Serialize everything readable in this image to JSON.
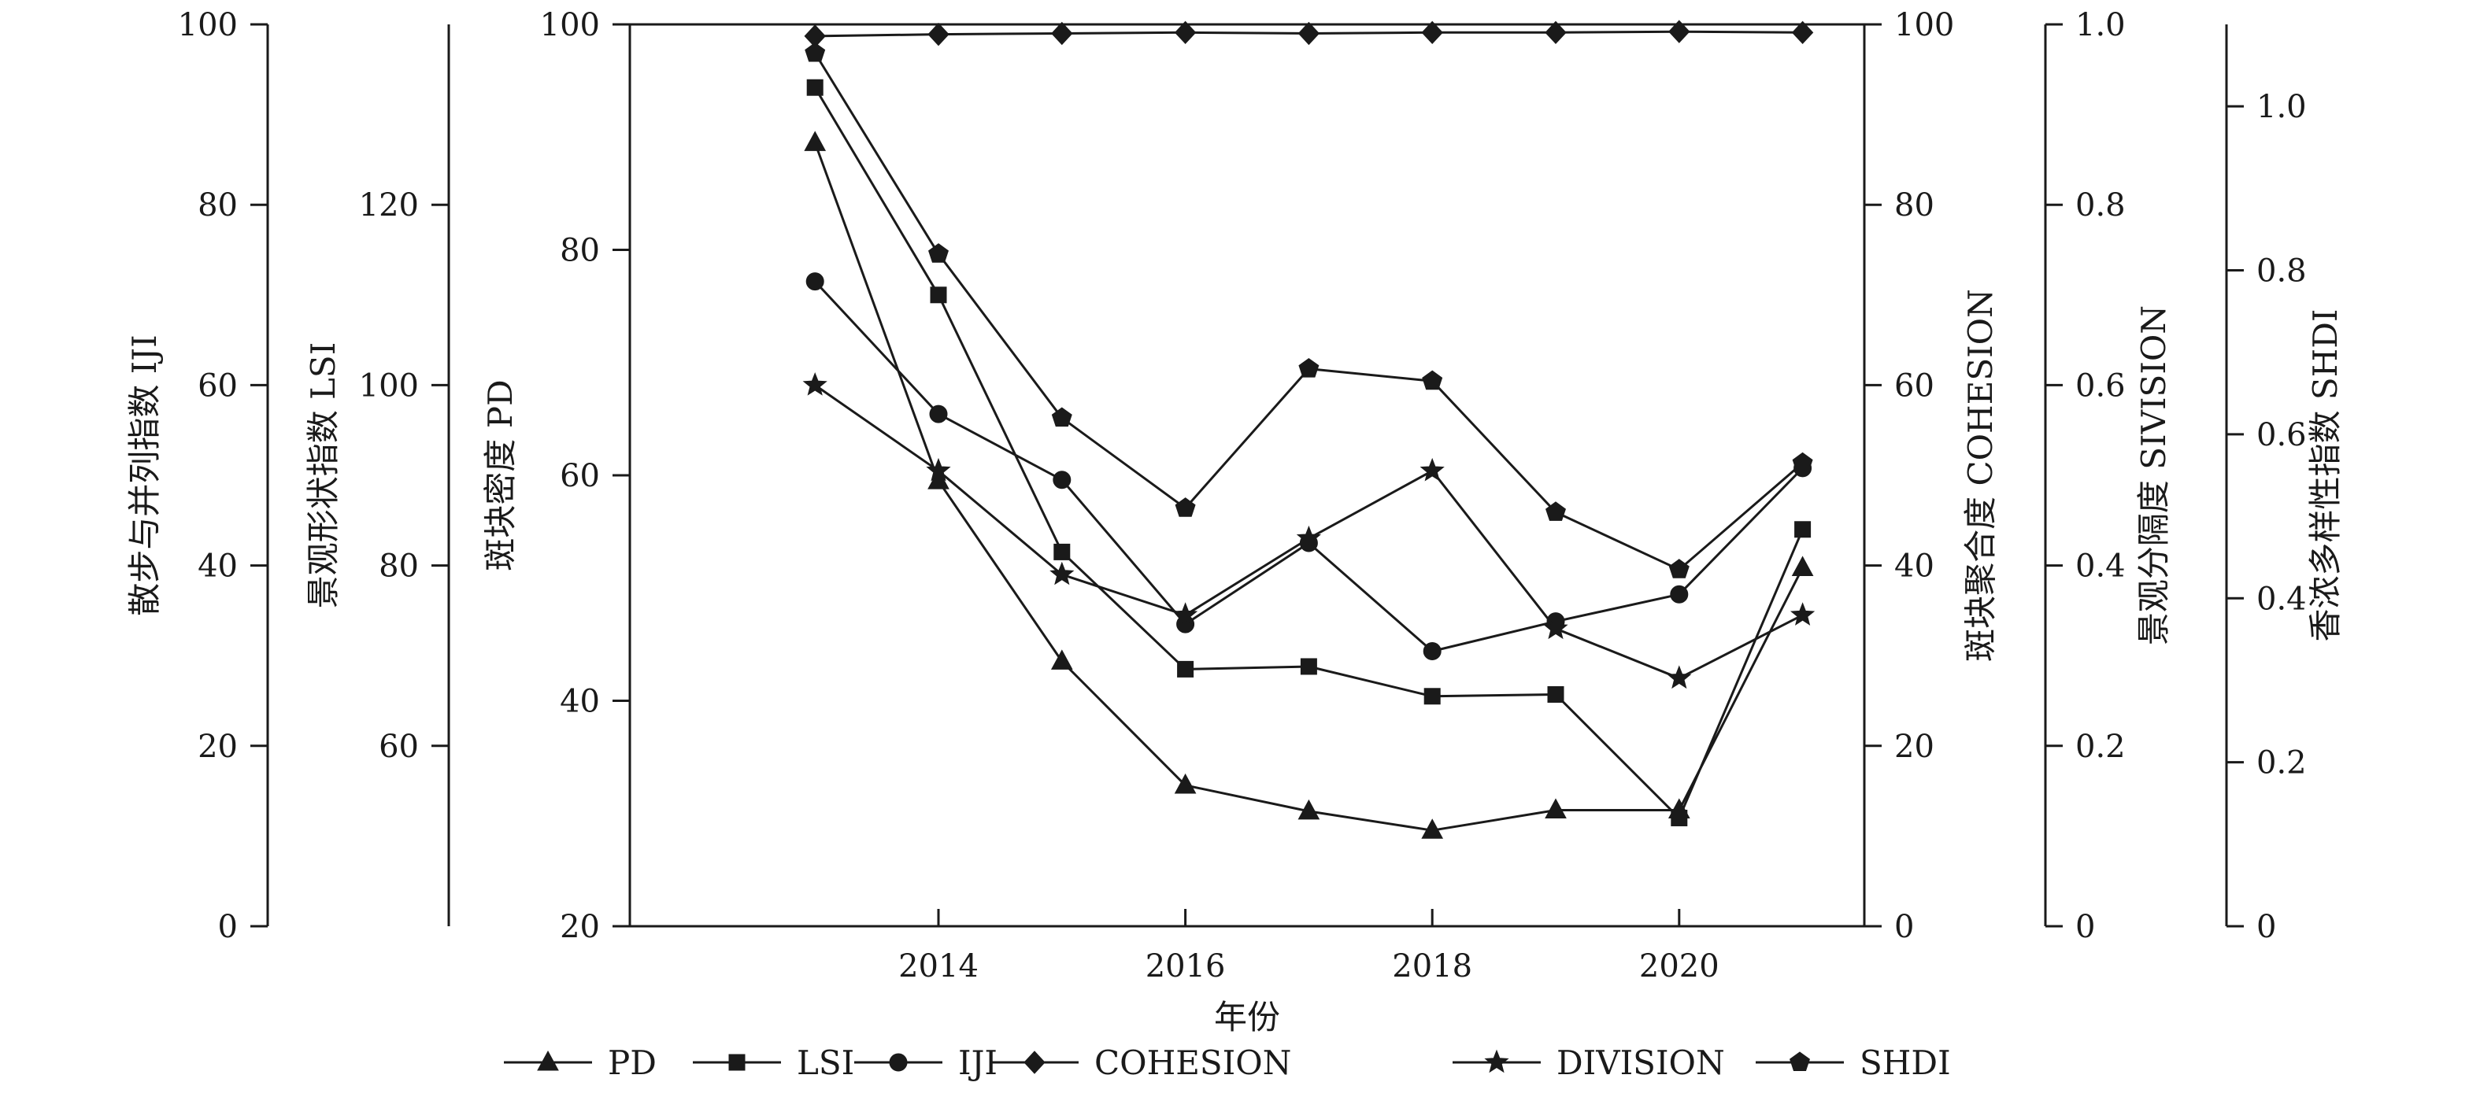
{
  "chart_data": {
    "type": "line",
    "xlabel": "年份",
    "x": [
      2013,
      2014,
      2015,
      2016,
      2017,
      2018,
      2019,
      2020,
      2021
    ],
    "xticks": [
      2014,
      2016,
      2018,
      2020
    ],
    "xlim": [
      2011.5,
      2021.5
    ],
    "axes": {
      "pd": {
        "label": "斑块密度 PD",
        "range": [
          20,
          100
        ],
        "ticks": [
          20,
          40,
          60,
          80,
          100
        ],
        "tick_labels": [
          "20",
          "40",
          "60",
          "80",
          "100"
        ]
      },
      "lsi": {
        "label": "景观形状指数 LSI",
        "range": [
          40,
          140
        ],
        "ticks": [
          60,
          80,
          100,
          120
        ],
        "tick_labels": [
          "60",
          "80",
          "100",
          "120"
        ]
      },
      "iji": {
        "label": "散步与并列指数 IJI",
        "range": [
          0,
          100
        ],
        "ticks": [
          0,
          20,
          40,
          60,
          80,
          100
        ],
        "tick_labels": [
          "0",
          "20",
          "40",
          "60",
          "80",
          "100"
        ]
      },
      "cohesion": {
        "label": "斑块聚合度 COHESION",
        "range": [
          0,
          100
        ],
        "ticks": [
          0,
          20,
          40,
          60,
          80,
          100
        ],
        "tick_labels": [
          "0",
          "20",
          "40",
          "60",
          "80",
          "100"
        ]
      },
      "division": {
        "label": "景观分隔度 SIVISION",
        "range": [
          0,
          1.0
        ],
        "ticks": [
          0,
          0.2,
          0.4,
          0.6,
          0.8,
          1.0
        ],
        "tick_labels": [
          "0",
          "0.2",
          "0.4",
          "0.6",
          "0.8",
          "1.0"
        ]
      },
      "shdi": {
        "label": "香浓多样性指数 SHDI",
        "range": [
          0,
          1.1
        ],
        "ticks": [
          0,
          0.2,
          0.4,
          0.6,
          0.8,
          1.0
        ],
        "tick_labels": [
          "0",
          "0.2",
          "0.4",
          "0.6",
          "0.8",
          "1.0"
        ]
      }
    },
    "series": [
      {
        "name": "PD",
        "axis": "pd",
        "marker": "triangle",
        "values": [
          89.5,
          59.5,
          43.5,
          32.5,
          30.2,
          28.5,
          30.3,
          30.3,
          51.8
        ]
      },
      {
        "name": "LSI",
        "axis": "lsi",
        "marker": "square",
        "values": [
          133,
          110,
          81.5,
          68.5,
          68.8,
          65.5,
          65.7,
          52,
          84
        ]
      },
      {
        "name": "IJI",
        "axis": "iji",
        "marker": "circle",
        "values": [
          71.5,
          56.8,
          49.5,
          33.5,
          42.5,
          30.5,
          33.8,
          36.8,
          50.8
        ]
      },
      {
        "name": "COHESION",
        "axis": "cohesion",
        "marker": "diamond",
        "values": [
          98.7,
          98.9,
          99.0,
          99.1,
          99.0,
          99.1,
          99.1,
          99.2,
          99.1
        ]
      },
      {
        "name": "DIVISION",
        "axis": "division",
        "marker": "star",
        "values": [
          0.6,
          0.505,
          0.39,
          0.345,
          0.43,
          0.505,
          0.33,
          0.275,
          0.345
        ]
      },
      {
        "name": "SHDI",
        "axis": "shdi",
        "marker": "pentagon",
        "values": [
          1.065,
          0.82,
          0.62,
          0.51,
          0.68,
          0.665,
          0.505,
          0.435,
          0.565
        ]
      }
    ],
    "legend_position": "bottom"
  }
}
